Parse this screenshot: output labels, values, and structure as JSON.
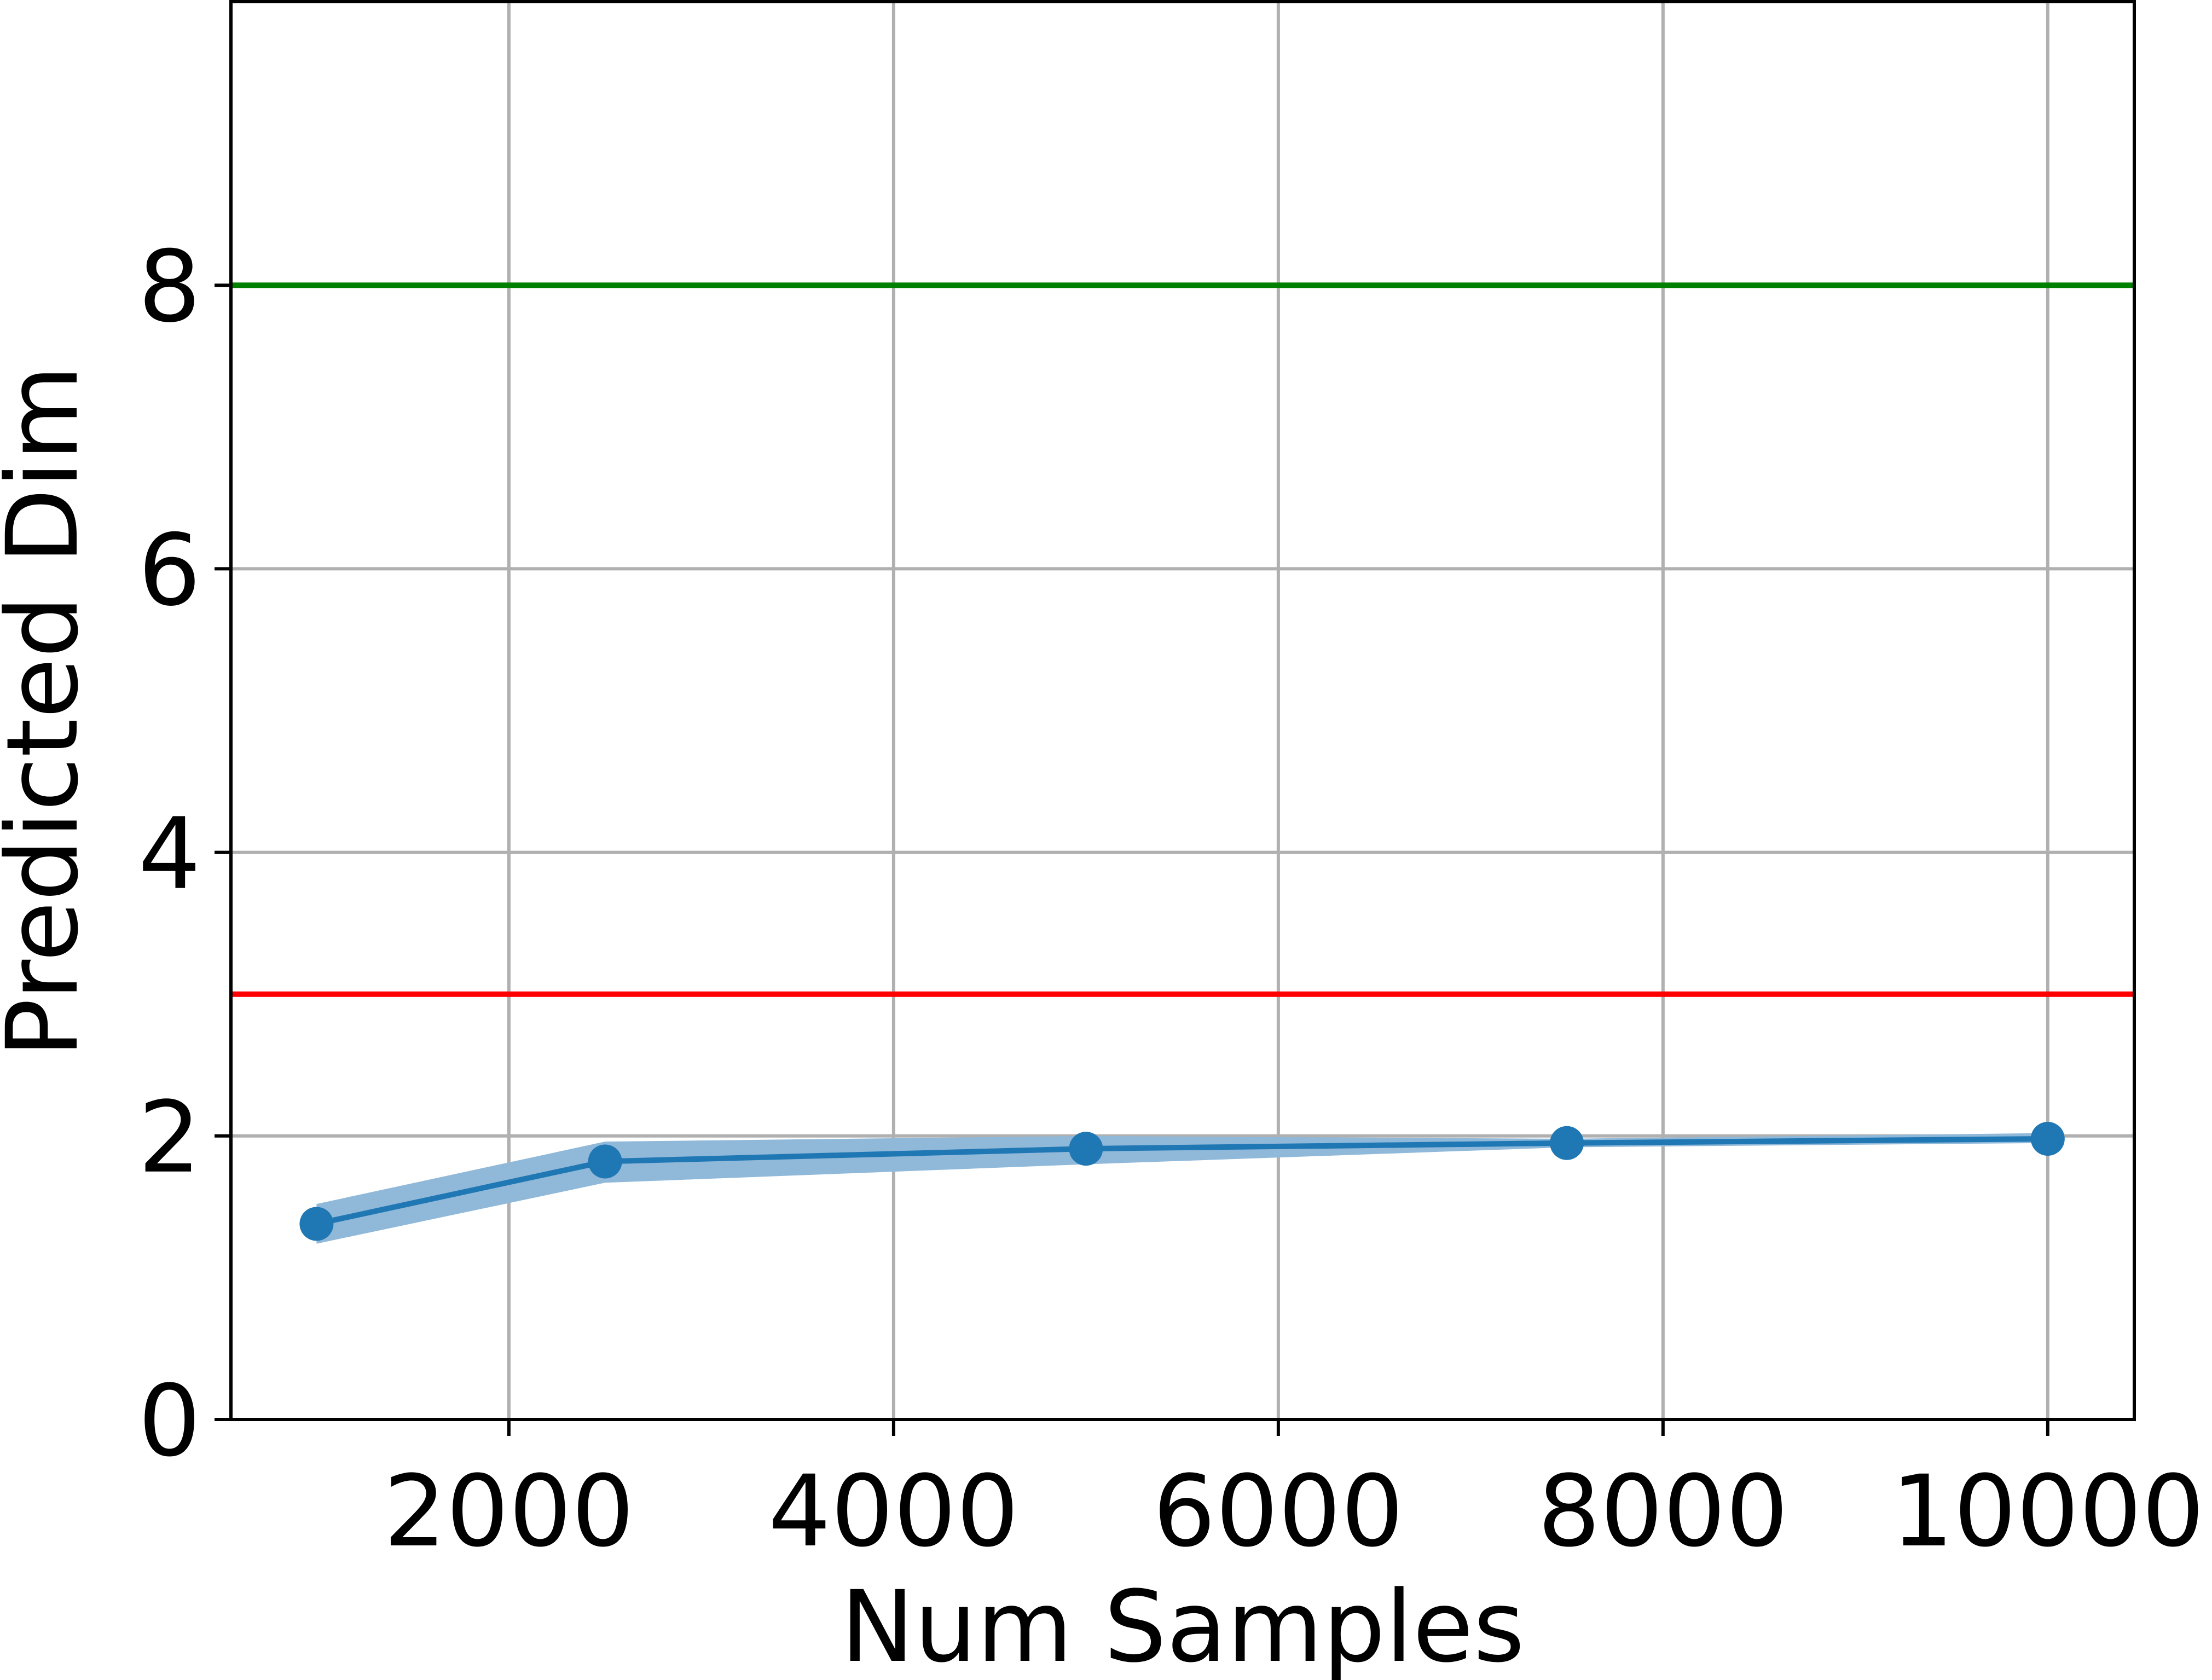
{
  "chart_data": {
    "type": "line",
    "xlabel": "Num Samples",
    "ylabel": "Predicted Dim",
    "x": [
      1000,
      2500,
      5000,
      7500,
      10000
    ],
    "series": [
      {
        "color": "#1f77b4",
        "values": [
          1.38,
          1.82,
          1.91,
          1.95,
          1.98
        ],
        "band_lower": [
          1.24,
          1.67,
          1.8,
          1.92,
          1.95
        ],
        "band_upper": [
          1.52,
          1.96,
          2.0,
          1.98,
          2.02
        ],
        "band_color": "#8fb8d9"
      }
    ],
    "hlines": [
      {
        "value": 8,
        "color": "#008000"
      },
      {
        "value": 3,
        "color": "#ff0000"
      }
    ],
    "xlim": [
      555,
      10450
    ],
    "ylim": [
      0,
      10
    ],
    "xticks": [
      2000,
      4000,
      6000,
      8000,
      10000
    ],
    "yticks": [
      0,
      2,
      4,
      6,
      8
    ],
    "grid": true
  }
}
